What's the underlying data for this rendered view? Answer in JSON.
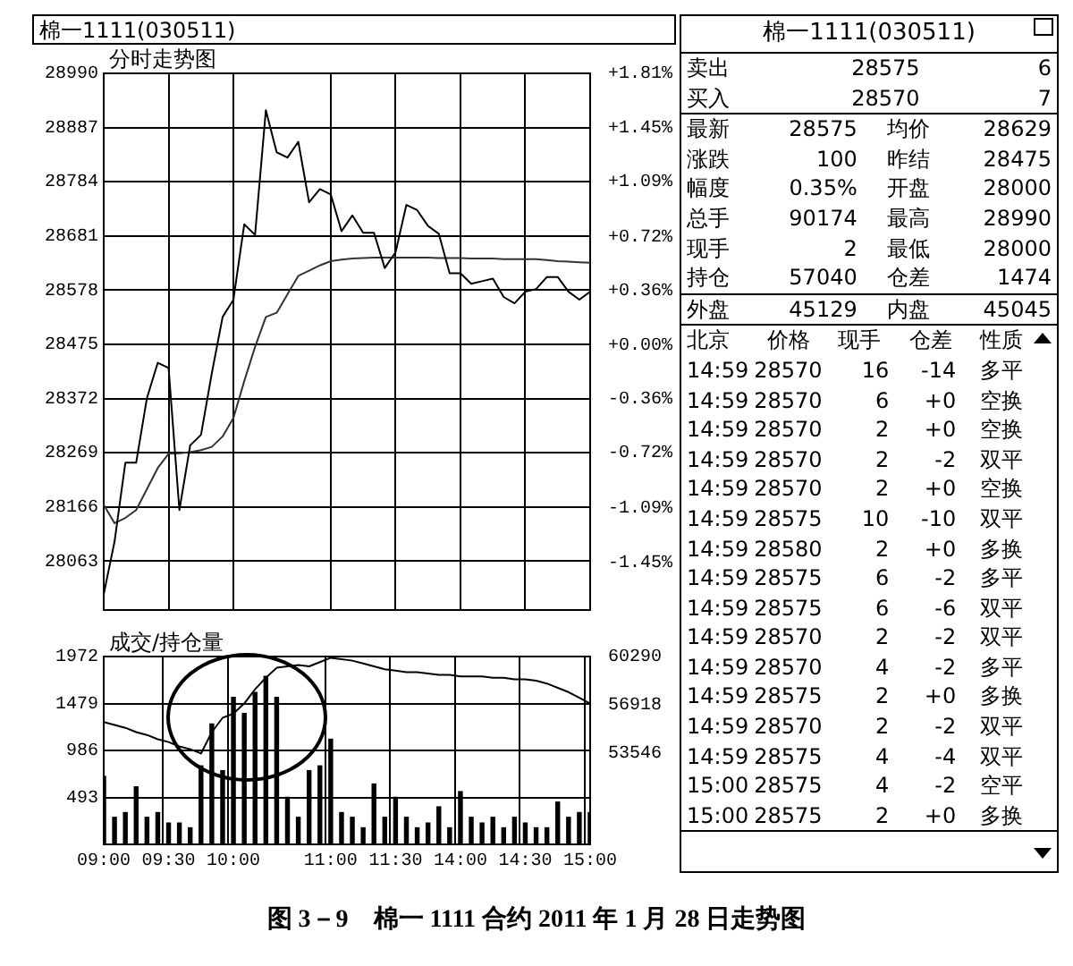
{
  "chart_data": [
    {
      "type": "line",
      "title": "分时走势图",
      "annotations": [
        "棉一1111(030511)",
        "图 3－9　棉一 1111 合约 2011 年 1 月 28 日走势图"
      ],
      "categories": [
        null,
        null,
        null,
        null,
        null,
        null,
        null,
        null,
        null,
        null,
        null,
        null,
        null,
        null,
        null,
        null,
        null,
        null,
        null,
        null,
        null,
        null,
        null,
        null,
        null,
        null,
        null,
        null,
        null,
        null,
        null,
        null,
        null,
        null,
        null,
        null,
        null,
        null,
        null,
        null,
        null,
        null,
        null,
        null,
        null,
        null
      ],
      "ylim": [
        27970,
        28990
      ],
      "yticks": [
        28063,
        28166,
        28269,
        28372,
        28475,
        28578,
        28681,
        28784,
        28887,
        28990
      ],
      "y2lim": [
        -1.77,
        1.81
      ],
      "y2ticks": [
        {
          "value": -1.45,
          "label": "-1.45%"
        },
        {
          "value": -1.09,
          "label": "-1.09%"
        },
        {
          "value": -0.72,
          "label": "-0.72%"
        },
        {
          "value": -0.36,
          "label": "-0.36%"
        },
        {
          "value": 0,
          "label": "+0.00%"
        },
        {
          "value": 0.36,
          "label": "+0.36%"
        },
        {
          "value": 0.72,
          "label": "+0.72%"
        },
        {
          "value": 1.09,
          "label": "+1.09%"
        },
        {
          "value": 1.45,
          "label": "+1.45%"
        },
        {
          "value": 1.81,
          "label": "+1.81%"
        }
      ],
      "tick_labels": "y",
      "grid": true,
      "series": [
        {
          "color": "#000000",
          "values": [
            28000,
            28100,
            28250,
            28250,
            28373,
            28440,
            28430,
            28160,
            28283,
            28303,
            28420,
            28527,
            28560,
            28703,
            28683,
            28920,
            28840,
            28830,
            28860,
            28745,
            28770,
            28760,
            28690,
            28720,
            28687,
            28687,
            28620,
            28650,
            28740,
            28730,
            28700,
            28685,
            28610,
            28610,
            28590,
            28595,
            28600,
            28565,
            28553,
            28575,
            28580,
            28603,
            28603,
            28575,
            28560,
            28575
          ]
        },
        {
          "color": "#333333",
          "values": [
            28170,
            28135,
            28145,
            28160,
            28200,
            28240,
            28267,
            28268,
            28270,
            28274,
            28280,
            28300,
            28335,
            28405,
            28470,
            28527,
            28535,
            28570,
            28605,
            28615,
            28625,
            28633,
            28636,
            28638,
            28639,
            28640,
            28640,
            28640,
            28640,
            28640,
            28640,
            28639,
            28639,
            28639,
            28638,
            28638,
            28638,
            28637,
            28637,
            28637,
            28637,
            28635,
            28633,
            28632,
            28631,
            28630
          ]
        }
      ]
    },
    {
      "type": "bar",
      "title": "成交/持仓量",
      "categories": [
        "09:00",
        null,
        null,
        null,
        null,
        null,
        "09:30",
        null,
        null,
        null,
        null,
        null,
        "10:00",
        null,
        null,
        null,
        null,
        null,
        null,
        null,
        null,
        "11:00",
        null,
        null,
        null,
        null,
        null,
        "11:30",
        null,
        null,
        null,
        null,
        null,
        "14:00",
        null,
        null,
        null,
        null,
        null,
        "14:30",
        null,
        null,
        null,
        null,
        null,
        "15:00"
      ],
      "ylim": [
        0,
        1972
      ],
      "yticks": [
        493,
        986,
        1479,
        1972
      ],
      "y2lim": [
        47140,
        60290
      ],
      "y2ticks": [
        53546,
        56918,
        60290
      ],
      "grid": true,
      "series": [
        {
          "color": "#000000",
          "values": [
            720,
            290,
            340,
            610,
            290,
            340,
            230,
            230,
            180,
            830,
            1270,
            780,
            1550,
            1380,
            1600,
            1770,
            1550,
            500,
            290,
            780,
            830,
            1110,
            340,
            290,
            180,
            640,
            290,
            500,
            290,
            180,
            230,
            400,
            180,
            560,
            290,
            230,
            290,
            180,
            290,
            230,
            180,
            180,
            450,
            290,
            340,
            340
          ]
        },
        {
          "type": "line",
          "axis": "y2",
          "color": "#000000",
          "values": [
            55700,
            55500,
            55300,
            55000,
            54800,
            54500,
            54300,
            54000,
            53800,
            53500,
            55000,
            56000,
            56300,
            57000,
            58000,
            58800,
            59500,
            59600,
            59700,
            59600,
            59900,
            60200,
            60100,
            60000,
            59800,
            59600,
            59400,
            59300,
            59200,
            59200,
            59100,
            59000,
            59000,
            58900,
            58900,
            58900,
            58800,
            58800,
            58700,
            58700,
            58600,
            58400,
            58100,
            57800,
            57400,
            57000
          ]
        }
      ]
    },
    {
      "type": "other",
      "title": "棉一1111(030511)",
      "annotations": [
        "卖出",
        "28575",
        "6",
        "买入",
        "28570",
        "7",
        "最新",
        "28575",
        "均价",
        "28629",
        "涨跌",
        "100",
        "昨结",
        "28475",
        "幅度",
        "0.35%",
        "开盘",
        "28000",
        "总手",
        "90174",
        "最高",
        "28990",
        "现手",
        "2",
        "最低",
        "28000",
        "持仓",
        "57040",
        "仓差",
        "1474",
        "外盘",
        "45129",
        "内盘",
        "45045",
        "北京",
        "价格",
        "现手",
        "仓差",
        "性质",
        "14:59",
        "28570",
        "16",
        "-14",
        "多平",
        "14:59",
        "28570",
        "6",
        "+0",
        "空换",
        "14:59",
        "28570",
        "2",
        "+0",
        "空换",
        "14:59",
        "28570",
        "2",
        "-2",
        "双平",
        "14:59",
        "28570",
        "2",
        "+0",
        "空换",
        "14:59",
        "28575",
        "10",
        "-10",
        "双平",
        "14:59",
        "28580",
        "2",
        "+0",
        "多换",
        "14:59",
        "28575",
        "6",
        "-2",
        "多平",
        "14:59",
        "28575",
        "6",
        "-6",
        "双平",
        "14:59",
        "28570",
        "2",
        "-2",
        "双平",
        "14:59",
        "28570",
        "4",
        "-2",
        "多平",
        "14:59",
        "28575",
        "2",
        "+0",
        "多换",
        "14:59",
        "28570",
        "2",
        "-2",
        "双平",
        "14:59",
        "28575",
        "4",
        "-4",
        "双平",
        "15:00",
        "28575",
        "4",
        "-2",
        "空平",
        "15:00",
        "28575",
        "2",
        "+0",
        "多换"
      ]
    }
  ]
}
